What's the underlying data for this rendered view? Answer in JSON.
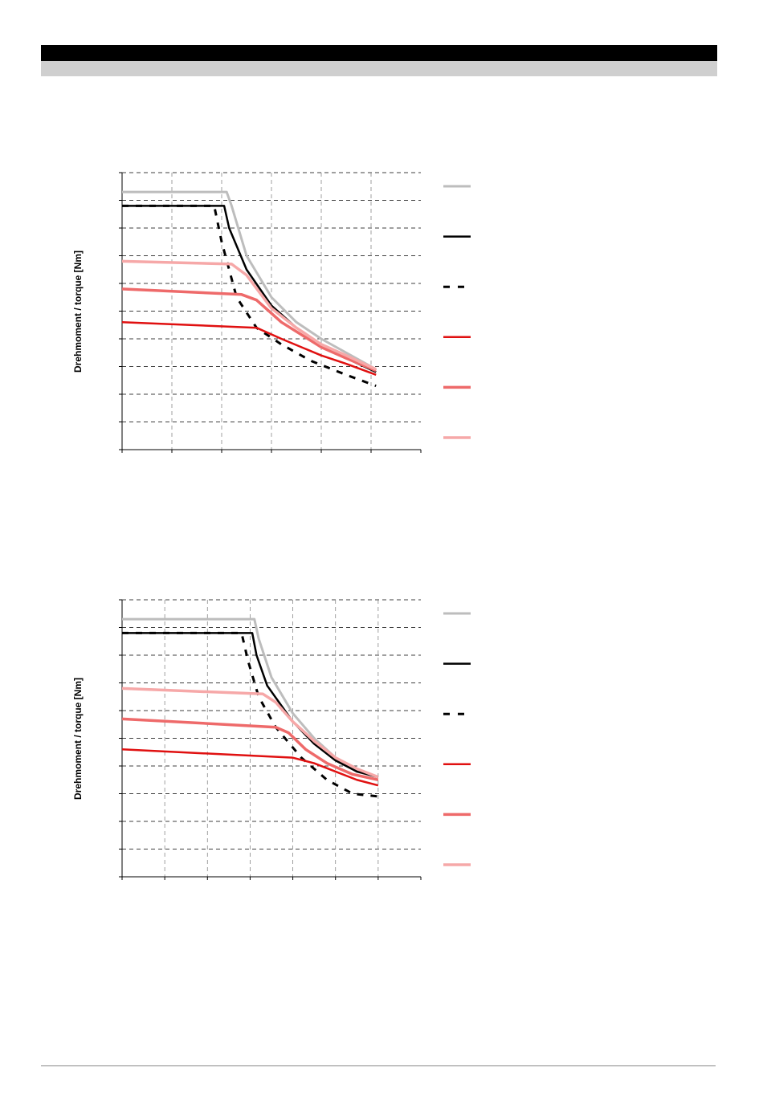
{
  "header": {
    "bar_color": "#000000",
    "subbar_color": "#cfcfcf"
  },
  "chart_data": [
    {
      "type": "line",
      "title": "",
      "xlabel": "",
      "ylabel": "Drehmoment / torque [Nm]",
      "xlim": [
        0,
        6
      ],
      "ylim": [
        0,
        10
      ],
      "grid": true,
      "legend": "right",
      "series": [
        {
          "style": "solid",
          "color": "#bdbdbd",
          "width": 3,
          "x": [
            0,
            2.1,
            2.2,
            2.5,
            3.0,
            3.5,
            4.0,
            4.5,
            5.1
          ],
          "y": [
            9.3,
            9.3,
            8.8,
            7.0,
            5.5,
            4.6,
            4.0,
            3.5,
            2.9
          ]
        },
        {
          "style": "solid",
          "color": "#000000",
          "width": 2.5,
          "x": [
            0,
            2.05,
            2.15,
            2.5,
            3.0,
            3.5,
            4.0,
            4.5,
            5.1
          ],
          "y": [
            8.8,
            8.8,
            8.0,
            6.5,
            5.2,
            4.4,
            3.8,
            3.3,
            2.8
          ]
        },
        {
          "style": "dashed",
          "color": "#000000",
          "width": 3,
          "x": [
            0,
            1.85,
            2.0,
            2.3,
            2.7,
            3.2,
            3.8,
            4.5,
            5.1
          ],
          "y": [
            8.8,
            8.8,
            7.5,
            5.5,
            4.4,
            3.8,
            3.2,
            2.7,
            2.3
          ]
        },
        {
          "style": "solid",
          "color": "#e01010",
          "width": 2.5,
          "x": [
            0,
            2.7,
            3.2,
            4.0,
            4.5,
            5.1
          ],
          "y": [
            4.6,
            4.4,
            4.0,
            3.4,
            3.1,
            2.7
          ]
        },
        {
          "style": "solid",
          "color": "#ee6a6a",
          "width": 3.5,
          "x": [
            0,
            2.4,
            2.7,
            3.2,
            4.0,
            4.5,
            5.1
          ],
          "y": [
            5.8,
            5.6,
            5.4,
            4.6,
            3.7,
            3.3,
            2.85
          ]
        },
        {
          "style": "solid",
          "color": "#f6a8a8",
          "width": 3.5,
          "x": [
            0,
            2.2,
            2.5,
            3.0,
            3.5,
            4.0,
            4.5,
            5.1
          ],
          "y": [
            6.8,
            6.7,
            6.3,
            5.1,
            4.4,
            3.8,
            3.4,
            2.9
          ]
        }
      ]
    },
    {
      "type": "line",
      "title": "",
      "xlabel": "",
      "ylabel": "Drehmoment / torque [Nm]",
      "xlim": [
        0,
        7
      ],
      "ylim": [
        0,
        10
      ],
      "grid": true,
      "legend": "right",
      "series": [
        {
          "style": "solid",
          "color": "#bdbdbd",
          "width": 3,
          "x": [
            0,
            3.1,
            3.2,
            3.5,
            4.0,
            4.5,
            5.0,
            5.5,
            6.0
          ],
          "y": [
            9.3,
            9.3,
            8.6,
            7.2,
            5.9,
            5.0,
            4.3,
            3.8,
            3.6
          ]
        },
        {
          "style": "solid",
          "color": "#000000",
          "width": 2.5,
          "x": [
            0,
            3.05,
            3.15,
            3.4,
            4.0,
            4.5,
            5.0,
            5.5,
            6.0
          ],
          "y": [
            8.8,
            8.8,
            8.0,
            6.9,
            5.6,
            4.8,
            4.2,
            3.8,
            3.6
          ]
        },
        {
          "style": "dashed",
          "color": "#000000",
          "width": 3,
          "x": [
            0,
            2.8,
            2.95,
            3.2,
            3.6,
            4.2,
            4.8,
            5.4,
            6.0
          ],
          "y": [
            8.8,
            8.8,
            7.8,
            6.5,
            5.4,
            4.3,
            3.5,
            3.0,
            2.9
          ]
        },
        {
          "style": "solid",
          "color": "#e01010",
          "width": 2.5,
          "x": [
            0,
            4.0,
            4.5,
            5.0,
            5.5,
            6.0
          ],
          "y": [
            4.6,
            4.3,
            4.1,
            3.8,
            3.5,
            3.3
          ]
        },
        {
          "style": "solid",
          "color": "#ee6a6a",
          "width": 3.5,
          "x": [
            0,
            3.6,
            3.9,
            4.3,
            4.8,
            5.4,
            6.0
          ],
          "y": [
            5.7,
            5.4,
            5.2,
            4.6,
            4.1,
            3.7,
            3.5
          ]
        },
        {
          "style": "solid",
          "color": "#f6a8a8",
          "width": 3.5,
          "x": [
            0,
            3.3,
            3.6,
            4.0,
            4.5,
            5.0,
            5.5,
            6.0
          ],
          "y": [
            6.8,
            6.6,
            6.3,
            5.6,
            4.9,
            4.3,
            3.9,
            3.6
          ]
        }
      ]
    }
  ]
}
